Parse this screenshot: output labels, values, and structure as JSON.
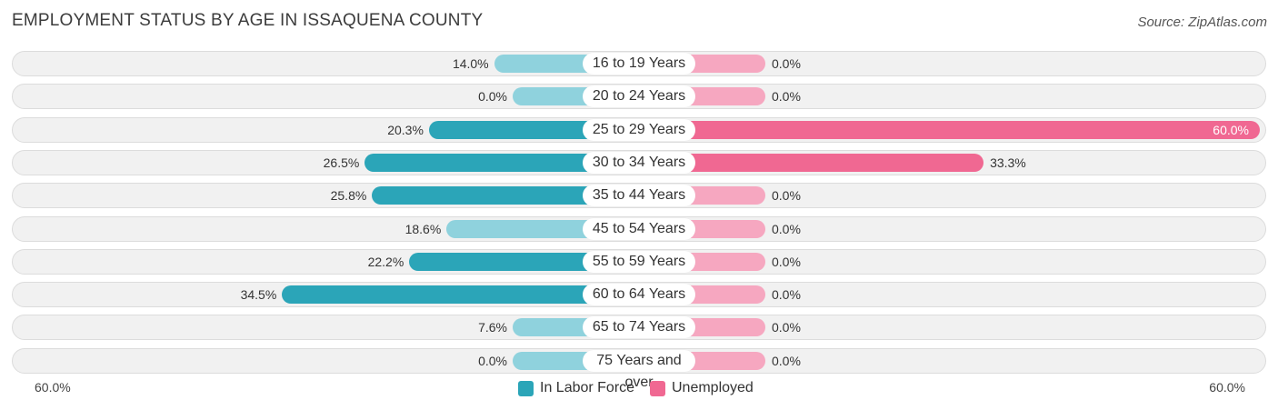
{
  "chart_data": {
    "type": "bar",
    "title": "EMPLOYMENT STATUS BY AGE IN ISSAQUENA COUNTY",
    "source": "Source: ZipAtlas.com",
    "categories": [
      "16 to 19 Years",
      "20 to 24 Years",
      "25 to 29 Years",
      "30 to 34 Years",
      "35 to 44 Years",
      "45 to 54 Years",
      "55 to 59 Years",
      "60 to 64 Years",
      "65 to 74 Years",
      "75 Years and over"
    ],
    "series": [
      {
        "name": "In Labor Force",
        "values": [
          14.0,
          0.0,
          20.3,
          26.5,
          25.8,
          18.6,
          22.2,
          34.5,
          7.6,
          0.0
        ],
        "labels": [
          "14.0%",
          "0.0%",
          "20.3%",
          "26.5%",
          "25.8%",
          "18.6%",
          "22.2%",
          "34.5%",
          "7.6%",
          "0.0%"
        ]
      },
      {
        "name": "Unemployed",
        "values": [
          0.0,
          0.0,
          60.0,
          33.3,
          0.0,
          0.0,
          0.0,
          0.0,
          0.0,
          0.0
        ],
        "labels": [
          "0.0%",
          "0.0%",
          "60.0%",
          "33.3%",
          "0.0%",
          "0.0%",
          "0.0%",
          "0.0%",
          "0.0%",
          "0.0%"
        ]
      }
    ],
    "xlim": [
      -60,
      60
    ],
    "axis_left_label": "60.0%",
    "axis_right_label": "60.0%",
    "legend_position": "bottom-center",
    "colors": {
      "labor_strong": "#2ba5b8",
      "labor_light": "#8fd2dd",
      "unemp_strong": "#f06892",
      "unemp_light": "#f6a7c0"
    }
  }
}
